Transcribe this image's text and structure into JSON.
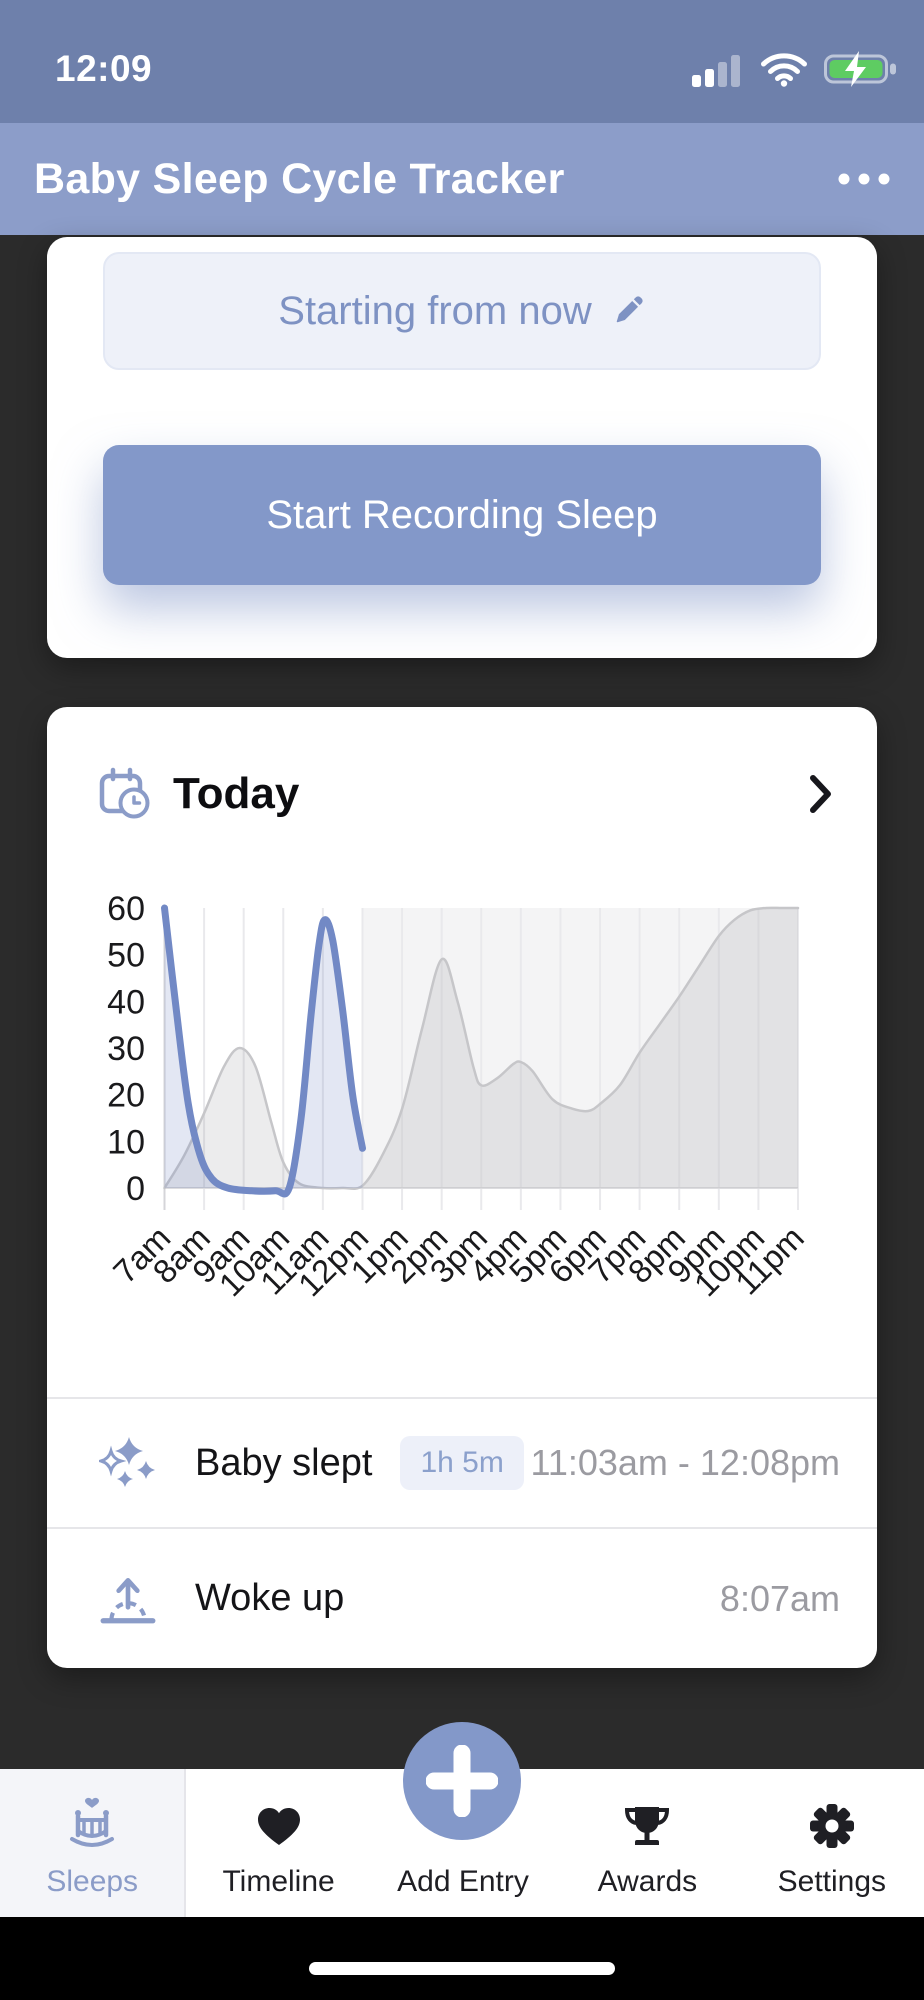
{
  "status_bar": {
    "time": "12:09"
  },
  "header": {
    "title": "Baby Sleep Cycle Tracker"
  },
  "recording_card": {
    "time_field_label": "Starting from now",
    "start_button_label": "Start Recording Sleep"
  },
  "today_card": {
    "title": "Today",
    "entries": [
      {
        "icon": "sparkles-icon",
        "label": "Baby slept",
        "duration_badge": "1h 5m",
        "time": "11:03am - 12:08pm"
      },
      {
        "icon": "sunrise-icon",
        "label": "Woke up",
        "time": "8:07am"
      }
    ]
  },
  "chart_data": {
    "type": "area",
    "title": "Today sleepiness chart",
    "xlabel": "",
    "ylabel": "",
    "x_tick_labels": [
      "7am",
      "8am",
      "9am",
      "10am",
      "11am",
      "12pm",
      "1pm",
      "2pm",
      "3pm",
      "4pm",
      "5pm",
      "6pm",
      "7pm",
      "8pm",
      "9pm",
      "10pm",
      "11pm"
    ],
    "x_domain_hours": [
      7,
      23
    ],
    "y_ticks": [
      0,
      10,
      20,
      30,
      40,
      50,
      60
    ],
    "ylim": [
      0,
      60
    ],
    "grid": true,
    "legend": "none",
    "future_shade_start_hour": 12,
    "series": [
      {
        "name": "typical-sleepy-pattern",
        "stroke": "#c6c6c9",
        "stroke_width": 2.5,
        "fill": "rgba(125,125,132,0.15)",
        "points": [
          [
            7,
            0
          ],
          [
            7.5,
            7
          ],
          [
            8,
            16
          ],
          [
            8.5,
            26
          ],
          [
            8.9,
            30
          ],
          [
            9.3,
            26
          ],
          [
            9.7,
            14
          ],
          [
            10,
            5.5
          ],
          [
            10.4,
            1
          ],
          [
            11,
            0
          ],
          [
            11.5,
            0
          ],
          [
            12,
            0.5
          ],
          [
            12.5,
            7
          ],
          [
            13,
            17
          ],
          [
            13.5,
            34
          ],
          [
            14,
            49
          ],
          [
            14.4,
            40
          ],
          [
            14.8,
            26
          ],
          [
            15,
            22
          ],
          [
            15.4,
            23.5
          ],
          [
            15.8,
            26.5
          ],
          [
            16,
            27
          ],
          [
            16.3,
            25
          ],
          [
            16.8,
            19
          ],
          [
            17.3,
            17
          ],
          [
            17.7,
            16.5
          ],
          [
            18,
            18
          ],
          [
            18.5,
            22
          ],
          [
            19,
            29
          ],
          [
            19.5,
            35
          ],
          [
            20,
            41
          ],
          [
            20.5,
            47.5
          ],
          [
            21,
            54
          ],
          [
            21.4,
            57.5
          ],
          [
            21.8,
            59.5
          ],
          [
            22.2,
            60
          ],
          [
            22.6,
            60
          ],
          [
            23,
            60
          ]
        ]
      },
      {
        "name": "recorded-sleep",
        "stroke": "#7289c5",
        "stroke_width": 7,
        "fill": "rgba(114,136,196,0.20)",
        "points": [
          [
            7,
            60
          ],
          [
            7.3,
            38
          ],
          [
            7.6,
            18
          ],
          [
            7.9,
            7
          ],
          [
            8.2,
            2
          ],
          [
            8.6,
            0
          ],
          [
            9.2,
            -0.6
          ],
          [
            9.8,
            -0.6
          ],
          [
            10.15,
            0
          ],
          [
            10.45,
            15
          ],
          [
            10.7,
            37
          ],
          [
            10.9,
            52
          ],
          [
            11.05,
            57.5
          ],
          [
            11.25,
            53
          ],
          [
            11.5,
            38
          ],
          [
            11.75,
            20
          ],
          [
            12,
            8.5
          ]
        ]
      }
    ]
  },
  "tab_bar": {
    "tabs": [
      {
        "label": "Sleeps",
        "icon": "crib-icon",
        "active": true
      },
      {
        "label": "Timeline",
        "icon": "heart-icon",
        "active": false
      },
      {
        "label": "Add Entry",
        "icon": "plus-icon",
        "active": false
      },
      {
        "label": "Awards",
        "icon": "trophy-icon",
        "active": false
      },
      {
        "label": "Settings",
        "icon": "gear-icon",
        "active": false
      }
    ]
  },
  "colors": {
    "status_bar": "#6e80ab",
    "header": "#8c9dc9",
    "accent": "#8398c9",
    "accent_text": "#7e92c3",
    "page_bg": "#2b2b2b",
    "battery_green": "#5ecc62",
    "future_shade": "#f4f4f5",
    "gridline": "#e9e9ec",
    "axis_line": "#d5d5d9",
    "tick_text": "#1a1a1c"
  }
}
